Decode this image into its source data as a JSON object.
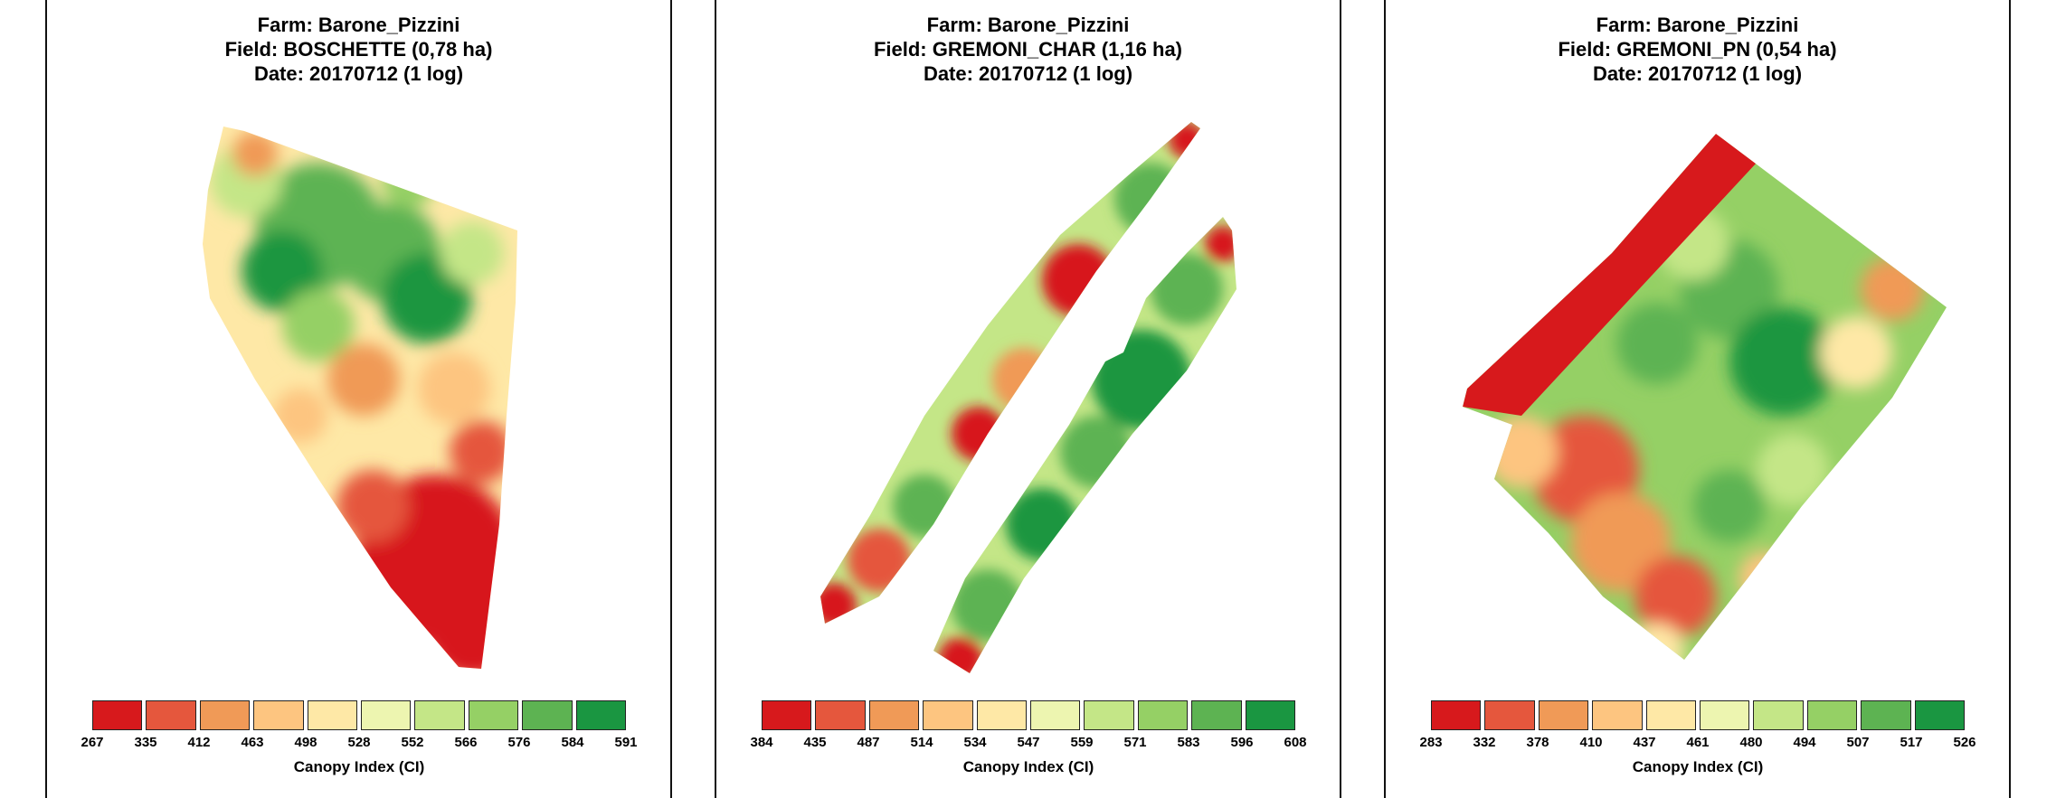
{
  "panels": [
    {
      "farm": "Farm: Barone_Pizzini",
      "field": "Field: BOSCHETTE (0,78 ha)",
      "date": "Date: 20170712 (1 log)",
      "legend": {
        "ticks": [
          "267",
          "335",
          "412",
          "463",
          "498",
          "528",
          "552",
          "566",
          "576",
          "584",
          "591"
        ],
        "title": "Canopy Index (CI)"
      }
    },
    {
      "farm": "Farm: Barone_Pizzini",
      "field": "Field: GREMONI_CHAR (1,16 ha)",
      "date": "Date: 20170712 (1 log)",
      "legend": {
        "ticks": [
          "384",
          "435",
          "487",
          "514",
          "534",
          "547",
          "559",
          "571",
          "583",
          "596",
          "608"
        ],
        "title": "Canopy Index (CI)"
      }
    },
    {
      "farm": "Farm: Barone_Pizzini",
      "field": "Field: GREMONI_PN (0,54 ha)",
      "date": "Date: 20170712 (1 log)",
      "legend": {
        "ticks": [
          "283",
          "332",
          "378",
          "410",
          "437",
          "461",
          "480",
          "494",
          "507",
          "517",
          "526"
        ],
        "title": "Canopy Index (CI)"
      }
    }
  ],
  "legend_colors": [
    "#d7191c",
    "#e5573d",
    "#f09a57",
    "#fdc580",
    "#fee8a6",
    "#edf5b0",
    "#c4e687",
    "#95d065",
    "#5db352",
    "#1a9641"
  ]
}
